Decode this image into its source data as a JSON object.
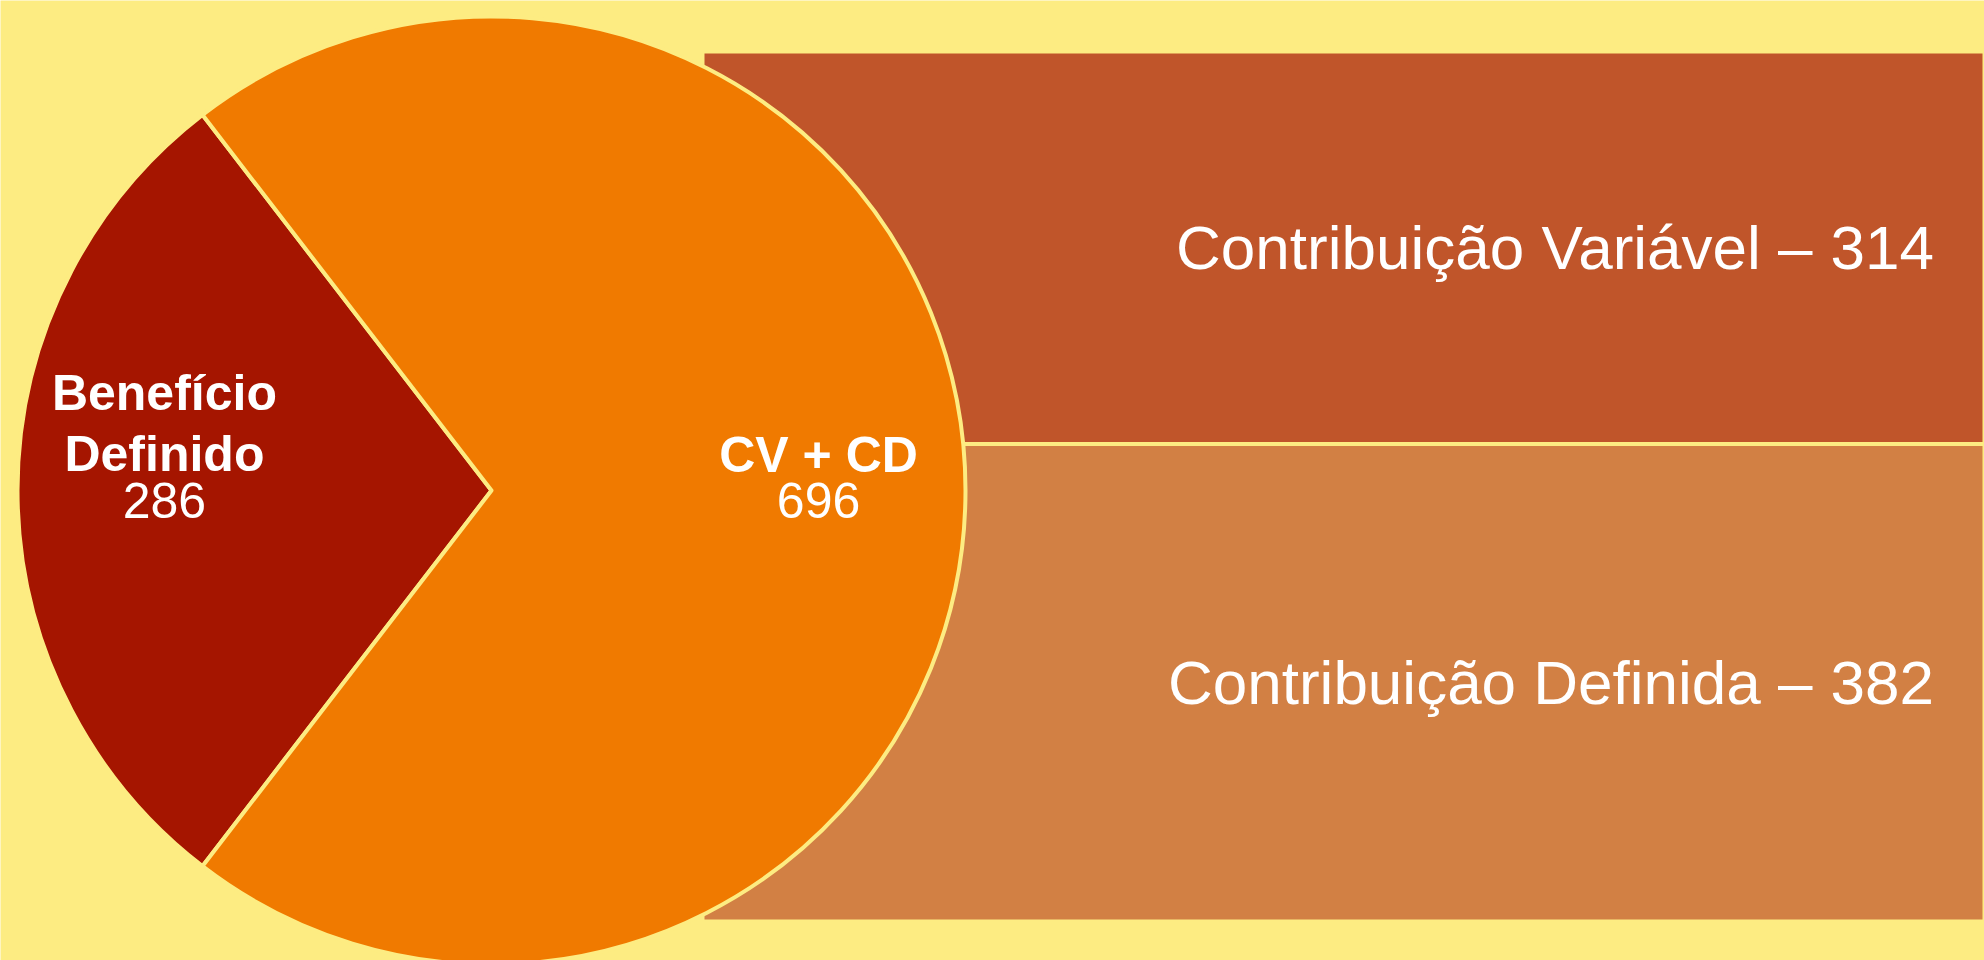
{
  "chart_data": [
    {
      "type": "pie",
      "categories": [
        "Benefício Definido",
        "CV + CD"
      ],
      "values": [
        286,
        696
      ],
      "colors": [
        "#a51500",
        "#f07a00"
      ],
      "data_labels": true
    },
    {
      "type": "bar",
      "stacked": true,
      "categories": [
        null
      ],
      "series": [
        {
          "name": "Contribuição Definida –",
          "color": "#d28044",
          "values": [
            382
          ]
        },
        {
          "name": "Contribuição Variável –",
          "color": "#c0552a",
          "values": [
            314
          ]
        }
      ],
      "data_labels": true
    }
  ]
}
